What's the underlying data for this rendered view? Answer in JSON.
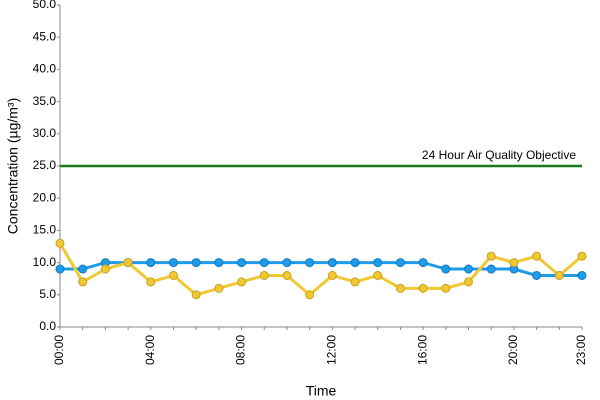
{
  "chart_data": {
    "type": "line",
    "x_label": "Time",
    "y_label": "Concentration (µg/m³)",
    "categories": [
      "00:00",
      null,
      null,
      null,
      "04:00",
      null,
      null,
      null,
      "08:00",
      null,
      null,
      null,
      "12:00",
      null,
      null,
      null,
      "16:00",
      null,
      null,
      null,
      "20:00",
      null,
      null,
      "23:00"
    ],
    "series": [
      {
        "color": "#1e9be9",
        "markers": true,
        "values": [
          9,
          9,
          10,
          10,
          10,
          10,
          10,
          10,
          10,
          10,
          10,
          10,
          10,
          10,
          10,
          10,
          10,
          9,
          9,
          9,
          9,
          8,
          8,
          8
        ]
      },
      {
        "color": "#f0c832",
        "markers": true,
        "values": [
          13,
          7,
          9,
          10,
          7,
          8,
          5,
          6,
          7,
          8,
          8,
          5,
          8,
          7,
          8,
          6,
          6,
          6,
          7,
          11,
          10,
          11,
          8,
          11
        ]
      },
      {
        "name": "24 Hour Air Quality Objective",
        "color": "#1a7a1a",
        "markers": false,
        "values": [
          25,
          25,
          25,
          25,
          25,
          25,
          25,
          25,
          25,
          25,
          25,
          25,
          25,
          25,
          25,
          25,
          25,
          25,
          25,
          25,
          25,
          25,
          25,
          25
        ]
      }
    ],
    "ylim": [
      0,
      50
    ],
    "yticks": [
      {
        "value": 0,
        "label": "0.0"
      },
      {
        "value": 5,
        "label": "5.0"
      },
      {
        "value": 10,
        "label": "10.0"
      },
      {
        "value": 15,
        "label": "15.0"
      },
      {
        "value": 20,
        "label": "20.0"
      },
      {
        "value": 25,
        "label": "25.0"
      },
      {
        "value": 30,
        "label": "30.0"
      },
      {
        "value": 35,
        "label": "35.0"
      },
      {
        "value": 40,
        "label": "40.0"
      },
      {
        "value": 45,
        "label": "45.0"
      },
      {
        "value": 50,
        "label": "50.0"
      }
    ],
    "grid": false
  }
}
